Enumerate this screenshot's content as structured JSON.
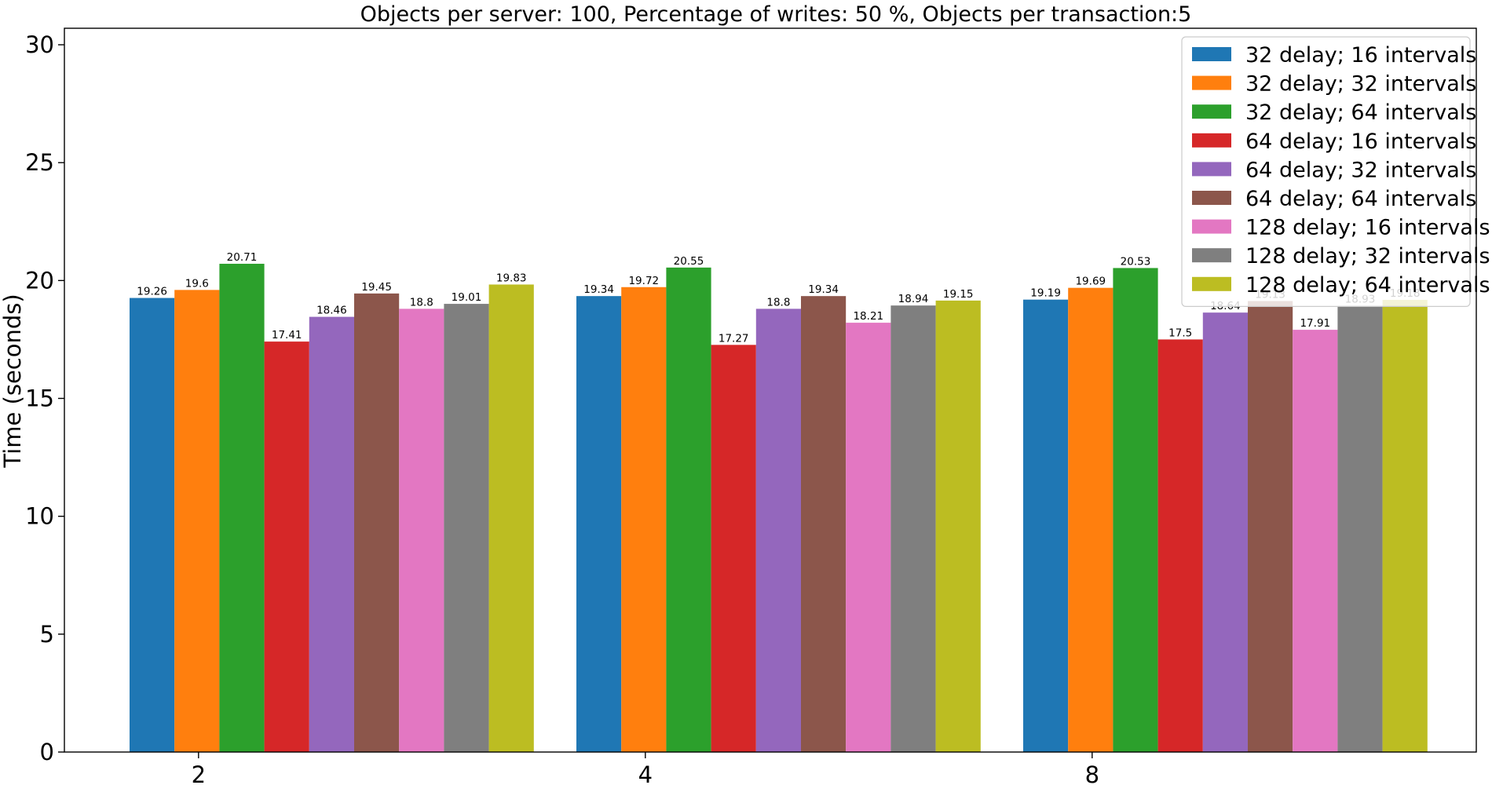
{
  "chart_data": {
    "type": "bar",
    "title": "Objects per server: 100, Percentage of writes: 50 %, Objects per transaction:5",
    "xlabel": "",
    "ylabel": "Time (seconds)",
    "ylim": [
      0,
      30.7
    ],
    "yticks": [
      0,
      5,
      10,
      15,
      20,
      25,
      30
    ],
    "categories": [
      "2",
      "4",
      "8"
    ],
    "legend_position": "top-right",
    "grid": false,
    "series": [
      {
        "name": "32 delay; 16 intervals",
        "color": "#1f77b4",
        "values": [
          19.26,
          19.34,
          19.19
        ],
        "labels": [
          "19.26",
          "19.34",
          "19.19"
        ]
      },
      {
        "name": "32 delay; 32 intervals",
        "color": "#ff7f0e",
        "values": [
          19.6,
          19.72,
          19.69
        ],
        "labels": [
          "19.6",
          "19.72",
          "19.69"
        ]
      },
      {
        "name": "32 delay; 64 intervals",
        "color": "#2ca02c",
        "values": [
          20.71,
          20.55,
          20.53
        ],
        "labels": [
          "20.71",
          "20.55",
          "20.53"
        ]
      },
      {
        "name": "64 delay; 16 intervals",
        "color": "#d62728",
        "values": [
          17.41,
          17.27,
          17.5
        ],
        "labels": [
          "17.41",
          "17.27",
          "17.5"
        ]
      },
      {
        "name": "64 delay; 32 intervals",
        "color": "#9467bd",
        "values": [
          18.46,
          18.8,
          18.64
        ],
        "labels": [
          "18.46",
          "18.8",
          "18.64"
        ]
      },
      {
        "name": "64 delay; 64 intervals",
        "color": "#8c564b",
        "values": [
          19.45,
          19.34,
          19.13
        ],
        "labels": [
          "19.45",
          "19.34",
          "19.13"
        ]
      },
      {
        "name": "128 delay; 16 intervals",
        "color": "#e377c2",
        "values": [
          18.8,
          18.21,
          17.91
        ],
        "labels": [
          "18.8",
          "18.21",
          "17.91"
        ]
      },
      {
        "name": "128 delay; 32 intervals",
        "color": "#7f7f7f",
        "values": [
          19.01,
          18.94,
          18.93
        ],
        "labels": [
          "19.01",
          "18.94",
          "18.93"
        ]
      },
      {
        "name": "128 delay; 64 intervals",
        "color": "#bcbd22",
        "values": [
          19.83,
          19.15,
          19.18
        ],
        "labels": [
          "19.83",
          "19.15",
          "19.18"
        ]
      }
    ]
  }
}
